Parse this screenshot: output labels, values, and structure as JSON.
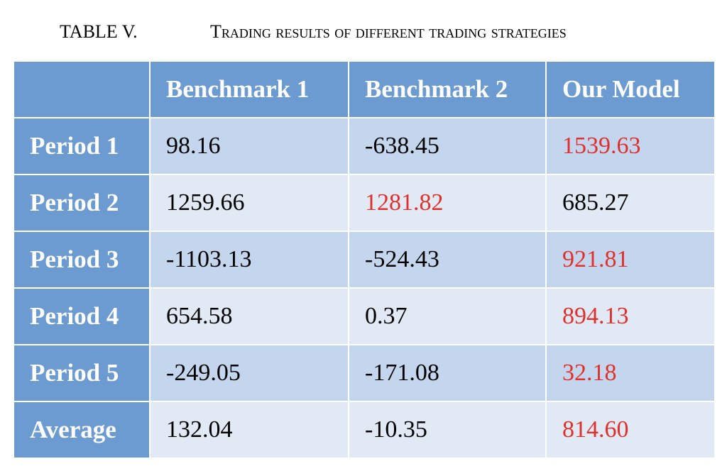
{
  "caption": {
    "label": "TABLE V.",
    "title": "Trading results of different trading strategies"
  },
  "table": {
    "columns": [
      "Benchmark 1",
      "Benchmark 2",
      "Our Model"
    ],
    "highlight_color": "#e0302c",
    "rows": [
      {
        "label": "Period 1",
        "cells": [
          "98.16",
          "-638.45",
          "1539.63"
        ],
        "highlight": 2
      },
      {
        "label": "Period 2",
        "cells": [
          "1259.66",
          "1281.82",
          "685.27"
        ],
        "highlight": 1
      },
      {
        "label": "Period 3",
        "cells": [
          "-1103.13",
          "-524.43",
          "921.81"
        ],
        "highlight": 2
      },
      {
        "label": "Period 4",
        "cells": [
          "654.58",
          "0.37",
          "894.13"
        ],
        "highlight": 2
      },
      {
        "label": "Period 5",
        "cells": [
          "-249.05",
          "-171.08",
          "32.18"
        ],
        "highlight": 2
      },
      {
        "label": "Average",
        "cells": [
          "132.04",
          "-10.35",
          "814.60"
        ],
        "highlight": 2
      }
    ]
  }
}
